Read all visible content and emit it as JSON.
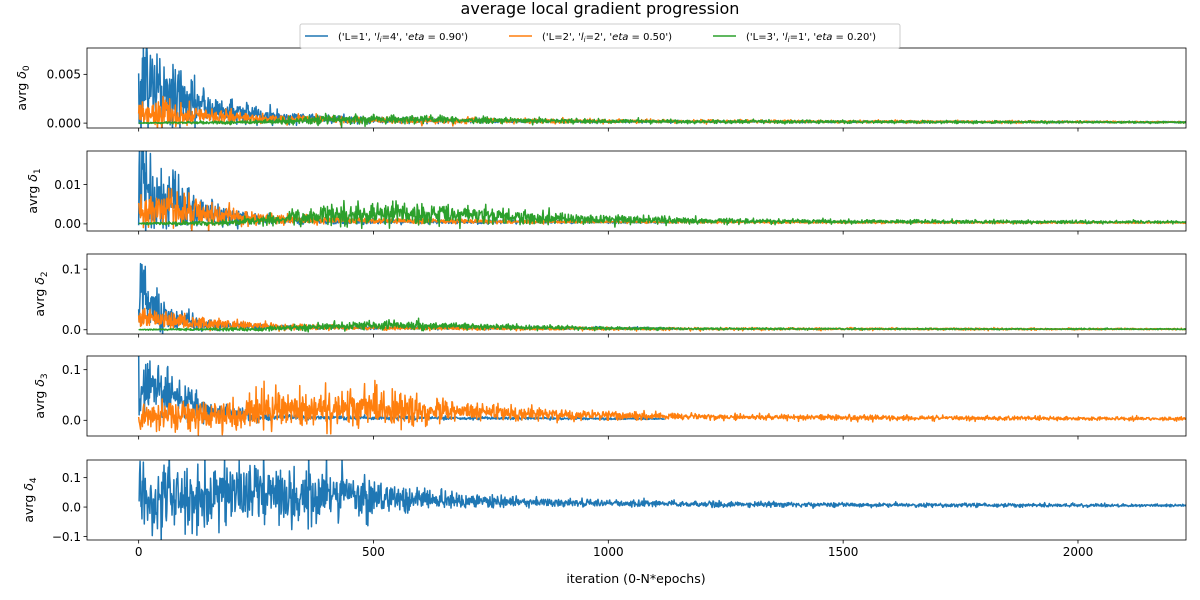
{
  "chart_data": {
    "type": "line",
    "title": "average local gradient progression",
    "xlabel": "iteration (0-N*epochs)",
    "xlim": [
      -110,
      2230
    ],
    "xticks": [
      0,
      500,
      1000,
      1500,
      2000
    ],
    "xtick_labels": [
      "0",
      "500",
      "1000",
      "1500",
      "2000"
    ],
    "legend": {
      "placement": "top-center",
      "entries": [
        {
          "label": "('L=1', 'l_i=4', 'eta = 0.90')",
          "prefix": "('L=1', '",
          "var": "l",
          "sub": "i",
          "mid": "=4', '",
          "eta": "eta",
          "suffix": " = 0.90')",
          "color": "#1f77b4"
        },
        {
          "label": "('L=2', 'l_i=2', 'eta = 0.50')",
          "prefix": "('L=2', '",
          "var": "l",
          "sub": "i",
          "mid": "=2', '",
          "eta": "eta",
          "suffix": " = 0.50')",
          "color": "#ff7f0e"
        },
        {
          "label": "('L=3', 'l_i=1', 'eta = 0.20')",
          "prefix": "('L=3', '",
          "var": "l",
          "sub": "i",
          "mid": "=1', '",
          "eta": "eta",
          "suffix": " = 0.20')",
          "color": "#2ca02c"
        }
      ]
    },
    "panels": [
      {
        "ylabel_prefix": "avrg ",
        "ylabel_symbol": "δ",
        "ylabel_sub": "0",
        "ylim": [
          -0.0005,
          0.0077
        ],
        "yticks": [
          0,
          0.005
        ],
        "ytick_labels": [
          "0.000",
          "0.005"
        ],
        "series": [
          {
            "color": "#1f77b4",
            "x_end": 2330,
            "envelope": [
              [
                0,
                0.0025
              ],
              [
                10,
                0.0045
              ],
              [
                60,
                0.003
              ],
              [
                150,
                0.0015
              ],
              [
                300,
                0.0006
              ],
              [
                500,
                0.0003
              ],
              [
                1000,
                0.00015
              ],
              [
                2330,
                0.0001
              ]
            ],
            "noise": [
              [
                0,
                0.0028
              ],
              [
                20,
                0.0028
              ],
              [
                60,
                0.0018
              ],
              [
                150,
                0.0008
              ],
              [
                300,
                0.0003
              ],
              [
                500,
                0.00015
              ],
              [
                1000,
                5e-05
              ],
              [
                2330,
                3e-05
              ]
            ]
          },
          {
            "color": "#ff7f0e",
            "x_end": 2330,
            "envelope": [
              [
                0,
                0.001
              ],
              [
                60,
                0.001
              ],
              [
                150,
                0.0007
              ],
              [
                300,
                0.0004
              ],
              [
                500,
                0.0003
              ],
              [
                1000,
                0.0002
              ],
              [
                2330,
                0.0001
              ]
            ],
            "noise": [
              [
                0,
                0.0008
              ],
              [
                60,
                0.0007
              ],
              [
                150,
                0.0004
              ],
              [
                300,
                0.0002
              ],
              [
                500,
                0.00015
              ],
              [
                1000,
                0.0001
              ],
              [
                2330,
                3e-05
              ]
            ]
          },
          {
            "color": "#2ca02c",
            "x_end": 2330,
            "envelope": [
              [
                0,
                2e-05
              ],
              [
                200,
                5e-05
              ],
              [
                300,
                0.0002
              ],
              [
                400,
                0.0004
              ],
              [
                550,
                0.0004
              ],
              [
                800,
                0.00025
              ],
              [
                1200,
                0.00015
              ],
              [
                2330,
                8e-05
              ]
            ],
            "noise": [
              [
                0,
                2e-05
              ],
              [
                250,
                0.0001
              ],
              [
                400,
                0.00025
              ],
              [
                600,
                0.0002
              ],
              [
                1000,
                0.0001
              ],
              [
                2330,
                4e-05
              ]
            ]
          }
        ]
      },
      {
        "ylabel_prefix": "avrg ",
        "ylabel_symbol": "δ",
        "ylabel_sub": "1",
        "ylim": [
          -0.0018,
          0.0185
        ],
        "yticks": [
          0,
          0.01
        ],
        "ytick_labels": [
          "0.00",
          "0.01"
        ],
        "series": [
          {
            "color": "#1f77b4",
            "x_end": 1150,
            "envelope": [
              [
                0,
                0.007
              ],
              [
                10,
                0.011
              ],
              [
                50,
                0.007
              ],
              [
                120,
                0.003
              ],
              [
                250,
                0.0012
              ],
              [
                400,
                0.0007
              ],
              [
                1150,
                0.0004
              ]
            ],
            "noise": [
              [
                0,
                0.006
              ],
              [
                20,
                0.006
              ],
              [
                60,
                0.004
              ],
              [
                150,
                0.0015
              ],
              [
                300,
                0.0004
              ],
              [
                1150,
                0.0001
              ]
            ]
          },
          {
            "color": "#ff7f0e",
            "x_end": 2330,
            "envelope": [
              [
                0,
                0.004
              ],
              [
                60,
                0.0035
              ],
              [
                150,
                0.0025
              ],
              [
                250,
                0.0014
              ],
              [
                400,
                0.0009
              ],
              [
                800,
                0.0006
              ],
              [
                1500,
                0.0004
              ],
              [
                2330,
                0.0003
              ]
            ],
            "noise": [
              [
                0,
                0.0025
              ],
              [
                100,
                0.002
              ],
              [
                250,
                0.0008
              ],
              [
                400,
                0.0004
              ],
              [
                1000,
                0.00015
              ],
              [
                2330,
                0.0001
              ]
            ]
          },
          {
            "color": "#2ca02c",
            "x_end": 2330,
            "envelope": [
              [
                0,
                0.0001
              ],
              [
                200,
                0.0003
              ],
              [
                300,
                0.0012
              ],
              [
                400,
                0.0022
              ],
              [
                550,
                0.0026
              ],
              [
                700,
                0.002
              ],
              [
                900,
                0.0013
              ],
              [
                1200,
                0.0007
              ],
              [
                2330,
                0.0004
              ]
            ],
            "noise": [
              [
                0,
                0.0001
              ],
              [
                250,
                0.0005
              ],
              [
                400,
                0.0014
              ],
              [
                600,
                0.0014
              ],
              [
                900,
                0.0007
              ],
              [
                1300,
                0.0003
              ],
              [
                2330,
                0.00015
              ]
            ]
          }
        ]
      },
      {
        "ylabel_prefix": "avrg ",
        "ylabel_symbol": "δ",
        "ylabel_sub": "2",
        "ylim": [
          -0.007,
          0.125
        ],
        "yticks": [
          0,
          0.1
        ],
        "ytick_labels": [
          "0.0",
          "0.1"
        ],
        "series": [
          {
            "color": "#1f77b4",
            "x_end": 1150,
            "envelope": [
              [
                0,
                0.045
              ],
              [
                5,
                0.09
              ],
              [
                20,
                0.04
              ],
              [
                60,
                0.02
              ],
              [
                150,
                0.008
              ],
              [
                300,
                0.004
              ],
              [
                1150,
                0.002
              ]
            ],
            "noise": [
              [
                0,
                0.03
              ],
              [
                20,
                0.02
              ],
              [
                60,
                0.01
              ],
              [
                150,
                0.004
              ],
              [
                300,
                0.0015
              ],
              [
                1150,
                0.0008
              ]
            ]
          },
          {
            "color": "#ff7f0e",
            "x_end": 2330,
            "envelope": [
              [
                0,
                0.018
              ],
              [
                60,
                0.016
              ],
              [
                150,
                0.01
              ],
              [
                300,
                0.005
              ],
              [
                500,
                0.003
              ],
              [
                1000,
                0.0015
              ],
              [
                2330,
                0.001
              ]
            ],
            "noise": [
              [
                0,
                0.008
              ],
              [
                100,
                0.006
              ],
              [
                250,
                0.003
              ],
              [
                500,
                0.0015
              ],
              [
                2330,
                0.0005
              ]
            ]
          },
          {
            "color": "#2ca02c",
            "x_end": 2330,
            "envelope": [
              [
                0,
                0.0003
              ],
              [
                250,
                0.001
              ],
              [
                350,
                0.004
              ],
              [
                500,
                0.007
              ],
              [
                650,
                0.006
              ],
              [
                900,
                0.003
              ],
              [
                1200,
                0.0015
              ],
              [
                2330,
                0.001
              ]
            ],
            "noise": [
              [
                0,
                0.0003
              ],
              [
                300,
                0.002
              ],
              [
                500,
                0.004
              ],
              [
                800,
                0.002
              ],
              [
                1200,
                0.0008
              ],
              [
                2330,
                0.0004
              ]
            ]
          }
        ]
      },
      {
        "ylabel_prefix": "avrg ",
        "ylabel_symbol": "δ",
        "ylabel_sub": "3",
        "ylim": [
          -0.031,
          0.127
        ],
        "yticks": [
          0,
          0.1
        ],
        "ytick_labels": [
          "0.0",
          "0.1"
        ],
        "series": [
          {
            "color": "#1f77b4",
            "x_end": 1120,
            "envelope": [
              [
                0,
                0.06
              ],
              [
                10,
                0.075
              ],
              [
                60,
                0.05
              ],
              [
                150,
                0.02
              ],
              [
                250,
                0.008
              ],
              [
                400,
                0.005
              ],
              [
                1120,
                0.003
              ]
            ],
            "noise": [
              [
                0,
                0.035
              ],
              [
                30,
                0.03
              ],
              [
                100,
                0.015
              ],
              [
                200,
                0.006
              ],
              [
                350,
                0.002
              ],
              [
                1120,
                0.0008
              ]
            ]
          },
          {
            "color": "#ff7f0e",
            "x_end": 2330,
            "envelope": [
              [
                0,
                0.006
              ],
              [
                200,
                0.01
              ],
              [
                350,
                0.025
              ],
              [
                480,
                0.028
              ],
              [
                600,
                0.022
              ],
              [
                800,
                0.014
              ],
              [
                1000,
                0.009
              ],
              [
                1300,
                0.006
              ],
              [
                1800,
                0.004
              ],
              [
                2330,
                0.003
              ]
            ],
            "noise": [
              [
                0,
                0.012
              ],
              [
                200,
                0.016
              ],
              [
                400,
                0.02
              ],
              [
                550,
                0.018
              ],
              [
                700,
                0.01
              ],
              [
                900,
                0.005
              ],
              [
                1200,
                0.003
              ],
              [
                2330,
                0.0015
              ]
            ]
          }
        ]
      },
      {
        "ylabel_prefix": "avrg ",
        "ylabel_symbol": "δ",
        "ylabel_sub": "4",
        "ylim": [
          -0.112,
          0.16
        ],
        "yticks": [
          -0.1,
          0,
          0.1
        ],
        "ytick_labels": [
          "−0.1",
          "0.0",
          "0.1"
        ],
        "series": [
          {
            "color": "#1f77b4",
            "x_end": 2330,
            "envelope": [
              [
                0,
                0.03
              ],
              [
                100,
                0.035
              ],
              [
                250,
                0.04
              ],
              [
                400,
                0.04
              ],
              [
                550,
                0.03
              ],
              [
                700,
                0.02
              ],
              [
                900,
                0.014
              ],
              [
                1200,
                0.01
              ],
              [
                1600,
                0.007
              ],
              [
                2330,
                0.005
              ]
            ],
            "noise": [
              [
                0,
                0.06
              ],
              [
                150,
                0.06
              ],
              [
                300,
                0.055
              ],
              [
                450,
                0.035
              ],
              [
                600,
                0.018
              ],
              [
                800,
                0.009
              ],
              [
                1100,
                0.005
              ],
              [
                1600,
                0.0035
              ],
              [
                2330,
                0.002
              ]
            ]
          }
        ]
      }
    ]
  }
}
